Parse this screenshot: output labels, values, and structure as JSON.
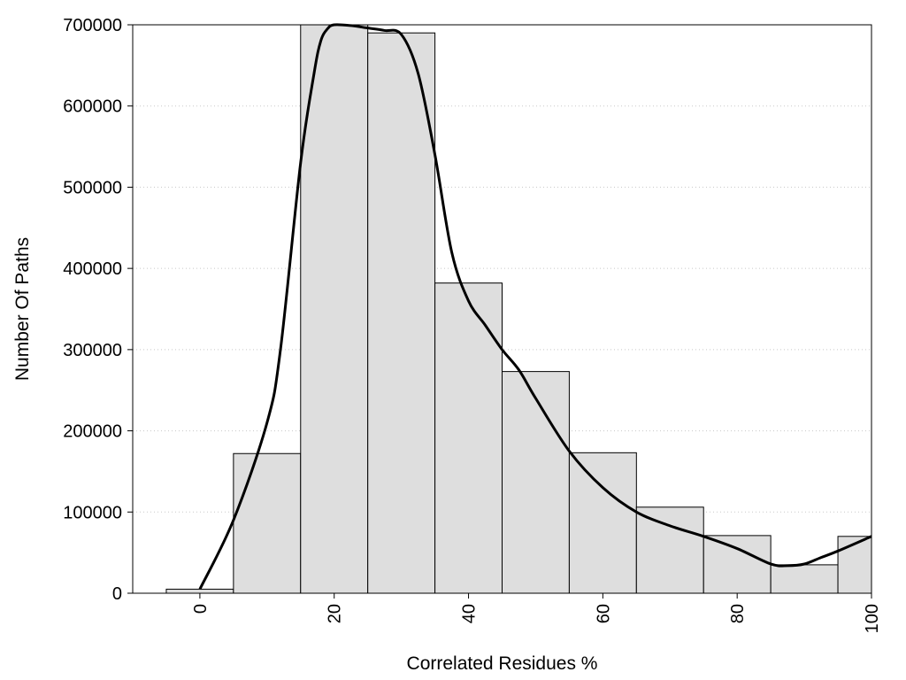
{
  "chart_data": {
    "type": "bar",
    "title": "",
    "xlabel": "Correlated Residues %",
    "ylabel": "Number Of Paths",
    "xlim": [
      -10,
      100
    ],
    "ylim": [
      0,
      700000
    ],
    "grid": "horizontal dotted",
    "bin_width": 10,
    "x_ticks": [
      "0",
      "20",
      "40",
      "60",
      "80",
      "100"
    ],
    "y_ticks": [
      "0",
      "100000",
      "200000",
      "300000",
      "400000",
      "500000",
      "600000",
      "700000"
    ],
    "categories": [
      0,
      10,
      20,
      30,
      40,
      50,
      60,
      70,
      80,
      90,
      100
    ],
    "values": [
      5000,
      172000,
      700000,
      690000,
      382000,
      273000,
      173000,
      106000,
      71000,
      35000,
      70000
    ],
    "bar_color": "#dedede",
    "curve": {
      "x": [
        0,
        5,
        10,
        12,
        15,
        17,
        18,
        19,
        20,
        22.5,
        25,
        27.5,
        30,
        32.5,
        35,
        37.5,
        40,
        42.5,
        45,
        47.5,
        50,
        55,
        60,
        65,
        70,
        75,
        80,
        85,
        87.5,
        90,
        92.5,
        95,
        100
      ],
      "y": [
        5000,
        90000,
        210000,
        300000,
        530000,
        640000,
        680000,
        695000,
        700000,
        699000,
        696000,
        693000,
        688000,
        640000,
        540000,
        420000,
        360000,
        330000,
        300000,
        275000,
        240000,
        175000,
        130000,
        100000,
        83000,
        70000,
        55000,
        36000,
        34000,
        36000,
        44000,
        52000,
        70000
      ],
      "color": "#000000"
    }
  }
}
